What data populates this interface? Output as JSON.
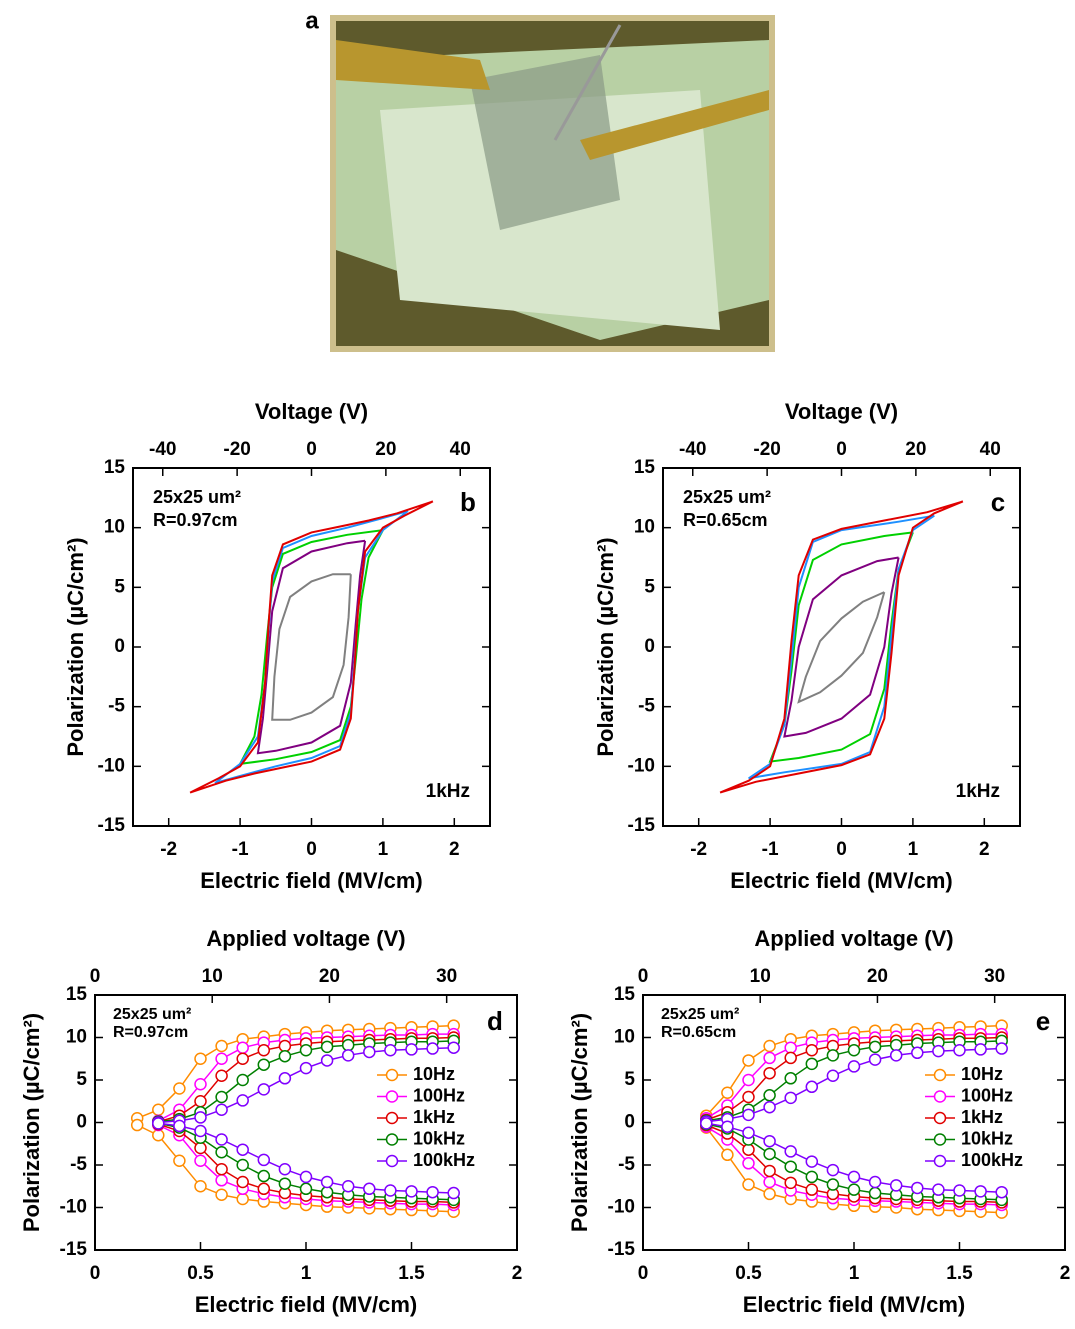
{
  "photo_panel": {
    "label": "a"
  },
  "chart_data": [
    {
      "type": "line",
      "panel_label": "b",
      "annotations": [
        "25x25 um²",
        "R=0.97cm"
      ],
      "frequency_label": "1kHz",
      "xlabel": "Electric field (MV/cm)",
      "x2label": "Voltage (V)",
      "ylabel": "Polarization (µC/cm²)",
      "xlim": [
        -2.5,
        2.5
      ],
      "xticks": [
        -2,
        -1,
        0,
        1,
        2
      ],
      "x2lim": [
        -48,
        48
      ],
      "x2ticks": [
        -40,
        -20,
        0,
        20,
        40
      ],
      "ylim": [
        -15,
        15
      ],
      "yticks": [
        -15,
        -10,
        -5,
        0,
        5,
        10,
        15
      ],
      "grid": false,
      "series": [
        {
          "color": "#808080",
          "x": [
            0.55,
            0.3,
            0,
            -0.3,
            -0.45,
            -0.52,
            -0.55,
            -0.3,
            0,
            0.3,
            0.45,
            0.52,
            0.55
          ],
          "values": [
            6.1,
            6.1,
            5.5,
            4.2,
            1.5,
            -2.5,
            -6.1,
            -6.1,
            -5.5,
            -4.2,
            -1.5,
            2.5,
            6.1
          ]
        },
        {
          "color": "#800080",
          "x": [
            0.75,
            0.5,
            0,
            -0.4,
            -0.55,
            -0.62,
            -0.68,
            -0.75,
            -0.5,
            0,
            0.4,
            0.55,
            0.62,
            0.68,
            0.75
          ],
          "values": [
            8.9,
            8.7,
            8.0,
            6.6,
            3.0,
            -2.0,
            -6.0,
            -8.9,
            -8.7,
            -8.0,
            -6.6,
            -3.0,
            2.0,
            6.0,
            8.9
          ]
        },
        {
          "color": "#00d000",
          "x": [
            1.0,
            0.5,
            0,
            -0.4,
            -0.55,
            -0.62,
            -0.7,
            -0.8,
            -1.0,
            -0.5,
            0,
            0.4,
            0.55,
            0.62,
            0.7,
            0.8,
            1.0
          ],
          "values": [
            9.8,
            9.4,
            8.8,
            7.8,
            5.0,
            1.0,
            -4.0,
            -7.5,
            -9.8,
            -9.4,
            -8.8,
            -7.8,
            -5.0,
            -1.0,
            4.0,
            7.5,
            9.8
          ]
        },
        {
          "color": "#1e90ff",
          "x": [
            1.35,
            1.0,
            0.5,
            0,
            -0.4,
            -0.55,
            -0.6,
            -0.65,
            -0.75,
            -1.0,
            -1.35,
            -1.0,
            -0.5,
            0,
            0.4,
            0.55,
            0.6,
            0.65,
            0.75,
            1.0,
            1.35
          ],
          "values": [
            11.4,
            10.8,
            10.0,
            9.3,
            8.3,
            5.5,
            1.5,
            -3.0,
            -7.5,
            -9.8,
            -11.4,
            -10.8,
            -10.0,
            -9.3,
            -8.3,
            -5.5,
            -1.5,
            3.0,
            7.5,
            9.8,
            11.4
          ]
        },
        {
          "color": "#e00000",
          "x": [
            1.7,
            1.2,
            0.8,
            0.4,
            0,
            -0.4,
            -0.55,
            -0.6,
            -0.65,
            -0.75,
            -1.0,
            -1.3,
            -1.7,
            -1.2,
            -0.8,
            -0.4,
            0,
            0.4,
            0.55,
            0.6,
            0.65,
            0.75,
            1.0,
            1.3,
            1.7
          ],
          "values": [
            12.2,
            11.2,
            10.6,
            10.1,
            9.6,
            8.6,
            6.0,
            2.0,
            -3.0,
            -8.0,
            -10.0,
            -11.0,
            -12.2,
            -11.2,
            -10.6,
            -10.1,
            -9.6,
            -8.6,
            -6.0,
            -2.0,
            3.0,
            8.0,
            10.0,
            11.0,
            12.2
          ]
        }
      ]
    },
    {
      "type": "line",
      "panel_label": "c",
      "annotations": [
        "25x25 um²",
        "R=0.65cm"
      ],
      "frequency_label": "1kHz",
      "xlabel": "Electric field (MV/cm)",
      "x2label": "Voltage (V)",
      "ylabel": "Polarization (µC/cm²)",
      "xlim": [
        -2.5,
        2.5
      ],
      "xticks": [
        -2,
        -1,
        0,
        1,
        2
      ],
      "x2lim": [
        -48,
        48
      ],
      "x2ticks": [
        -40,
        -20,
        0,
        20,
        40
      ],
      "ylim": [
        -15,
        15
      ],
      "yticks": [
        -15,
        -10,
        -5,
        0,
        5,
        10,
        15
      ],
      "grid": false,
      "series": [
        {
          "color": "#808080",
          "x": [
            0.6,
            0.3,
            0,
            -0.3,
            -0.5,
            -0.6,
            -0.3,
            0,
            0.3,
            0.5,
            0.6
          ],
          "values": [
            4.6,
            3.8,
            2.4,
            0.5,
            -2.5,
            -4.6,
            -3.8,
            -2.4,
            -0.5,
            2.5,
            4.6
          ]
        },
        {
          "color": "#800080",
          "x": [
            0.8,
            0.5,
            0,
            -0.4,
            -0.6,
            -0.7,
            -0.8,
            -0.5,
            0,
            0.4,
            0.6,
            0.7,
            0.8
          ],
          "values": [
            7.5,
            7.2,
            6.0,
            4.0,
            0,
            -4.5,
            -7.5,
            -7.2,
            -6.0,
            -4.0,
            0,
            4.5,
            7.5
          ]
        },
        {
          "color": "#00d000",
          "x": [
            1.0,
            0.6,
            0,
            -0.4,
            -0.6,
            -0.7,
            -0.8,
            -1.0,
            -0.6,
            0,
            0.4,
            0.6,
            0.7,
            0.8,
            1.0
          ],
          "values": [
            9.6,
            9.3,
            8.6,
            7.3,
            3.5,
            -2.0,
            -6.5,
            -9.6,
            -9.3,
            -8.6,
            -7.3,
            -3.5,
            2.0,
            6.5,
            9.6
          ]
        },
        {
          "color": "#1e90ff",
          "x": [
            1.3,
            0.8,
            0,
            -0.4,
            -0.6,
            -0.7,
            -0.8,
            -1.0,
            -1.3,
            -0.8,
            0,
            0.4,
            0.6,
            0.7,
            0.8,
            1.0,
            1.3
          ],
          "values": [
            11.0,
            10.5,
            9.8,
            8.8,
            5.0,
            -1.0,
            -6.5,
            -9.8,
            -11.0,
            -10.5,
            -9.8,
            -8.8,
            -5.0,
            1.0,
            6.5,
            9.8,
            11.0
          ]
        },
        {
          "color": "#e00000",
          "x": [
            1.7,
            1.2,
            0.6,
            0,
            -0.4,
            -0.6,
            -0.7,
            -0.8,
            -1.0,
            -1.3,
            -1.7,
            -1.2,
            -0.6,
            0,
            0.4,
            0.6,
            0.7,
            0.8,
            1.0,
            1.3,
            1.7
          ],
          "values": [
            12.2,
            11.3,
            10.6,
            9.9,
            9.0,
            6.0,
            0.5,
            -6.0,
            -10.0,
            -11.2,
            -12.2,
            -11.3,
            -10.6,
            -9.9,
            -9.0,
            -6.0,
            -0.5,
            6.0,
            10.0,
            11.2,
            12.2
          ]
        }
      ]
    },
    {
      "type": "line",
      "marker": "circle",
      "panel_label": "d",
      "annotations": [
        "25x25 um²",
        "R=0.97cm"
      ],
      "legend": "center-right",
      "xlabel": "Electric field (MV/cm)",
      "x2label": "Applied voltage (V)",
      "ylabel": "Polarization (µC/cm²)",
      "xlim": [
        0,
        2
      ],
      "xticks": [
        0,
        0.5,
        1,
        1.5,
        2
      ],
      "x2lim": [
        0,
        36
      ],
      "x2ticks": [
        0,
        10,
        20,
        30
      ],
      "ylim": [
        -15,
        15
      ],
      "yticks": [
        -15,
        -10,
        -5,
        0,
        5,
        10,
        15
      ],
      "grid": false,
      "x": [
        0.2,
        0.3,
        0.4,
        0.5,
        0.6,
        0.7,
        0.8,
        0.9,
        1.0,
        1.1,
        1.2,
        1.3,
        1.4,
        1.5,
        1.6,
        1.7
      ],
      "series": [
        {
          "name": "10Hz",
          "color": "#ff8c00",
          "values": [
            0.5,
            1.5,
            4,
            7.5,
            9,
            9.8,
            10.1,
            10.4,
            10.6,
            10.8,
            10.9,
            11,
            11.1,
            11.2,
            11.3,
            11.4
          ],
          "lower_values": [
            -0.3,
            -1.5,
            -4.5,
            -7.5,
            -8.5,
            -9,
            -9.3,
            -9.5,
            -9.7,
            -9.9,
            -10,
            -10.1,
            -10.2,
            -10.3,
            -10.4,
            -10.5
          ]
        },
        {
          "name": "100Hz",
          "color": "#ff00ff",
          "values": [
            null,
            0.2,
            1.5,
            4.5,
            7.5,
            8.8,
            9.4,
            9.7,
            9.9,
            10,
            10.1,
            10.2,
            10.3,
            10.3,
            10.4,
            10.4
          ],
          "lower_values": [
            null,
            -0.3,
            -1.5,
            -4.5,
            -6.8,
            -7.8,
            -8.4,
            -8.8,
            -9,
            -9.2,
            -9.3,
            -9.4,
            -9.5,
            -9.6,
            -9.6,
            -9.7
          ]
        },
        {
          "name": "1kHz",
          "color": "#e00000",
          "values": [
            null,
            0.1,
            0.8,
            2.5,
            5.5,
            7.5,
            8.5,
            9,
            9.3,
            9.5,
            9.6,
            9.7,
            9.8,
            9.9,
            9.9,
            10
          ],
          "lower_values": [
            null,
            -0.2,
            -1,
            -3,
            -5.5,
            -7,
            -7.8,
            -8.3,
            -8.6,
            -8.8,
            -9,
            -9.1,
            -9.2,
            -9.3,
            -9.3,
            -9.4
          ]
        },
        {
          "name": "10kHz",
          "color": "#008000",
          "values": [
            null,
            0.1,
            0.4,
            1.2,
            3,
            5,
            6.8,
            7.8,
            8.5,
            8.9,
            9.1,
            9.3,
            9.4,
            9.5,
            9.5,
            9.6
          ],
          "lower_values": [
            null,
            -0.1,
            -0.6,
            -1.8,
            -3.5,
            -5,
            -6.3,
            -7.2,
            -7.8,
            -8.2,
            -8.5,
            -8.7,
            -8.8,
            -8.9,
            -9,
            -9.1
          ]
        },
        {
          "name": "100kHz",
          "color": "#8000ff",
          "values": [
            null,
            0,
            0.2,
            0.6,
            1.5,
            2.6,
            3.9,
            5.2,
            6.4,
            7.3,
            7.9,
            8.3,
            8.5,
            8.6,
            8.7,
            8.8
          ],
          "lower_values": [
            null,
            -0.1,
            -0.4,
            -1,
            -2,
            -3.2,
            -4.4,
            -5.5,
            -6.4,
            -7,
            -7.5,
            -7.8,
            -8,
            -8.1,
            -8.2,
            -8.3
          ]
        }
      ]
    },
    {
      "type": "line",
      "marker": "circle",
      "panel_label": "e",
      "annotations": [
        "25x25 um²",
        "R=0.65cm"
      ],
      "legend": "center-right",
      "xlabel": "Electric field (MV/cm)",
      "x2label": "Applied voltage (V)",
      "ylabel": "Polarization (µC/cm²)",
      "xlim": [
        0,
        2
      ],
      "xticks": [
        0,
        0.5,
        1,
        1.5,
        2
      ],
      "x2lim": [
        0,
        36
      ],
      "x2ticks": [
        0,
        10,
        20,
        30
      ],
      "ylim": [
        -15,
        15
      ],
      "yticks": [
        -15,
        -10,
        -5,
        0,
        5,
        10,
        15
      ],
      "grid": false,
      "x": [
        0.2,
        0.3,
        0.4,
        0.5,
        0.6,
        0.7,
        0.8,
        0.9,
        1.0,
        1.1,
        1.2,
        1.3,
        1.4,
        1.5,
        1.6,
        1.7
      ],
      "series": [
        {
          "name": "10Hz",
          "color": "#ff8c00",
          "values": [
            null,
            0.8,
            3.5,
            7.3,
            9.0,
            9.8,
            10.2,
            10.4,
            10.6,
            10.8,
            10.9,
            11.0,
            11.1,
            11.2,
            11.3,
            11.4
          ],
          "lower_values": [
            null,
            -0.6,
            -3.8,
            -7.3,
            -8.4,
            -9.0,
            -9.3,
            -9.6,
            -9.8,
            -9.9,
            -10.0,
            -10.2,
            -10.3,
            -10.4,
            -10.5,
            -10.6
          ]
        },
        {
          "name": "100Hz",
          "color": "#ff00ff",
          "values": [
            null,
            0.5,
            2.0,
            5.0,
            7.6,
            8.8,
            9.4,
            9.7,
            9.9,
            10.0,
            10.1,
            10.2,
            10.3,
            10.3,
            10.4,
            10.4
          ],
          "lower_values": [
            null,
            -0.5,
            -2.0,
            -4.8,
            -7.0,
            -8.0,
            -8.5,
            -8.9,
            -9.1,
            -9.2,
            -9.3,
            -9.4,
            -9.5,
            -9.6,
            -9.6,
            -9.7
          ]
        },
        {
          "name": "1kHz",
          "color": "#e00000",
          "values": [
            null,
            0.3,
            1.2,
            3.0,
            5.8,
            7.6,
            8.5,
            9.0,
            9.3,
            9.5,
            9.6,
            9.7,
            9.8,
            9.9,
            9.9,
            10.0
          ],
          "lower_values": [
            null,
            -0.3,
            -1.3,
            -3.2,
            -5.7,
            -7.1,
            -7.9,
            -8.4,
            -8.7,
            -8.9,
            -9.0,
            -9.1,
            -9.2,
            -9.3,
            -9.3,
            -9.4
          ]
        },
        {
          "name": "10kHz",
          "color": "#008000",
          "values": [
            null,
            0.2,
            0.6,
            1.5,
            3.2,
            5.2,
            6.9,
            7.9,
            8.5,
            8.9,
            9.1,
            9.3,
            9.4,
            9.5,
            9.5,
            9.6
          ],
          "lower_values": [
            null,
            -0.2,
            -0.7,
            -2.0,
            -3.7,
            -5.2,
            -6.4,
            -7.3,
            -7.9,
            -8.3,
            -8.5,
            -8.7,
            -8.8,
            -8.9,
            -9.0,
            -9.1
          ]
        },
        {
          "name": "100kHz",
          "color": "#8000ff",
          "values": [
            null,
            0.1,
            0.4,
            0.9,
            1.8,
            2.9,
            4.2,
            5.5,
            6.6,
            7.4,
            7.9,
            8.2,
            8.4,
            8.5,
            8.6,
            8.7
          ],
          "lower_values": [
            null,
            -0.1,
            -0.5,
            -1.2,
            -2.2,
            -3.4,
            -4.6,
            -5.6,
            -6.4,
            -7.0,
            -7.4,
            -7.7,
            -7.9,
            -8.0,
            -8.1,
            -8.2
          ]
        }
      ]
    }
  ]
}
